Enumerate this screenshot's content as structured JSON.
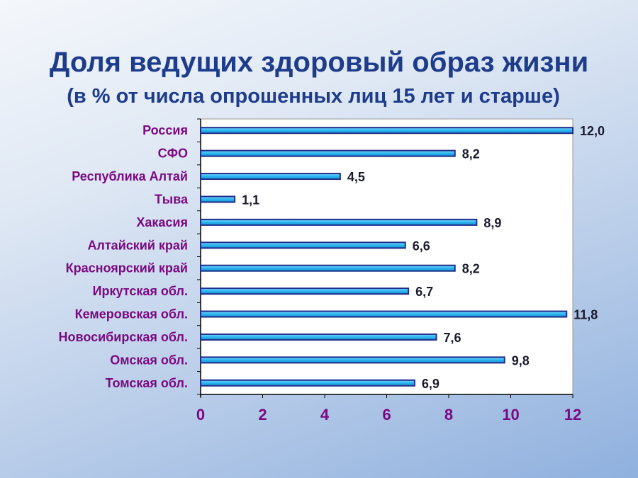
{
  "chart_data": {
    "type": "bar",
    "orientation": "horizontal",
    "title": "Доля ведущих здоровый образ жизни",
    "subtitle": "(в % от числа опрошенных лиц 15 лет и старше)",
    "categories": [
      "Россия",
      "СФО",
      "Республика Алтай",
      "Тыва",
      "Хакасия",
      "Алтайский край",
      "Красноярский край",
      "Иркутская обл.",
      "Кемеровская обл.",
      "Новосибирская обл.",
      "Омская обл.",
      "Томская обл."
    ],
    "values": [
      12.0,
      8.2,
      4.5,
      1.1,
      8.9,
      6.6,
      8.2,
      6.7,
      11.8,
      7.6,
      9.8,
      6.9
    ],
    "value_labels": [
      "12,0",
      "8,2",
      "4,5",
      "1,1",
      "8,9",
      "6,6",
      "8,2",
      "6,7",
      "11,8",
      "7,6",
      "9,8",
      "6,9"
    ],
    "xlim": [
      0,
      12
    ],
    "xticks": [
      "0",
      "2",
      "4",
      "6",
      "8",
      "10",
      "12"
    ],
    "xlabel": "",
    "ylabel": "",
    "grid": false,
    "colors": {
      "bar_fill": "#29b6f0",
      "bar_border": "#1f2f8a",
      "category_text": "#7a0a80",
      "title_text": "#1e3c8c"
    }
  }
}
